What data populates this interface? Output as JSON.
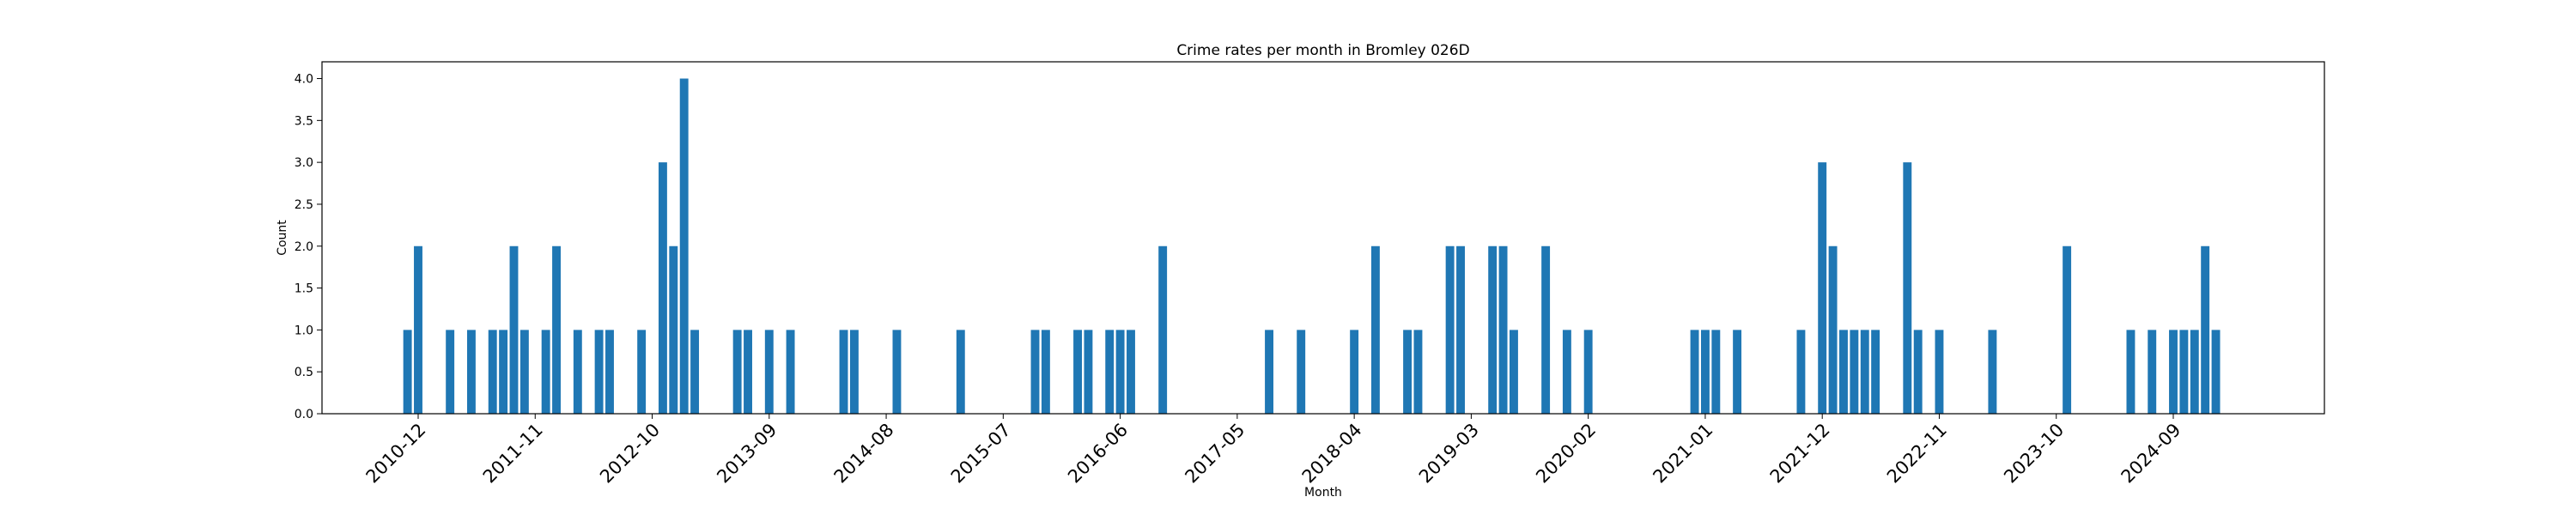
{
  "chart_data": {
    "type": "bar",
    "title": "Crime rates per month in Bromley 026D",
    "xlabel": "Month",
    "ylabel": "Count",
    "ylim": [
      0,
      4.2
    ],
    "y_ticks": [
      "0.0",
      "0.5",
      "1.0",
      "1.5",
      "2.0",
      "2.5",
      "3.0",
      "3.5",
      "4.0"
    ],
    "x_range": [
      "2010-04",
      "2025-09"
    ],
    "x_tick_labels": [
      "2010-12",
      "2011-11",
      "2012-10",
      "2013-09",
      "2014-08",
      "2015-07",
      "2016-06",
      "2017-05",
      "2018-04",
      "2019-03",
      "2020-02",
      "2021-01",
      "2021-12",
      "2022-11",
      "2023-10",
      "2024-09"
    ],
    "bar_color": "#1f77b4",
    "grid": false,
    "legend": "none",
    "bars": [
      {
        "month": "2010-11",
        "value": 1
      },
      {
        "month": "2010-12",
        "value": 2
      },
      {
        "month": "2011-03",
        "value": 1
      },
      {
        "month": "2011-05",
        "value": 1
      },
      {
        "month": "2011-07",
        "value": 1
      },
      {
        "month": "2011-08",
        "value": 1
      },
      {
        "month": "2011-09",
        "value": 2
      },
      {
        "month": "2011-10",
        "value": 1
      },
      {
        "month": "2011-12",
        "value": 1
      },
      {
        "month": "2012-01",
        "value": 2
      },
      {
        "month": "2012-03",
        "value": 1
      },
      {
        "month": "2012-05",
        "value": 1
      },
      {
        "month": "2012-06",
        "value": 1
      },
      {
        "month": "2012-09",
        "value": 1
      },
      {
        "month": "2012-11",
        "value": 3
      },
      {
        "month": "2012-12",
        "value": 2
      },
      {
        "month": "2013-01",
        "value": 4
      },
      {
        "month": "2013-02",
        "value": 1
      },
      {
        "month": "2013-06",
        "value": 1
      },
      {
        "month": "2013-07",
        "value": 1
      },
      {
        "month": "2013-09",
        "value": 1
      },
      {
        "month": "2013-11",
        "value": 1
      },
      {
        "month": "2014-04",
        "value": 1
      },
      {
        "month": "2014-05",
        "value": 1
      },
      {
        "month": "2014-09",
        "value": 1
      },
      {
        "month": "2015-03",
        "value": 1
      },
      {
        "month": "2015-10",
        "value": 1
      },
      {
        "month": "2015-11",
        "value": 1
      },
      {
        "month": "2016-02",
        "value": 1
      },
      {
        "month": "2016-03",
        "value": 1
      },
      {
        "month": "2016-05",
        "value": 1
      },
      {
        "month": "2016-06",
        "value": 1
      },
      {
        "month": "2016-07",
        "value": 1
      },
      {
        "month": "2016-10",
        "value": 2
      },
      {
        "month": "2017-08",
        "value": 1
      },
      {
        "month": "2017-11",
        "value": 1
      },
      {
        "month": "2018-04",
        "value": 1
      },
      {
        "month": "2018-06",
        "value": 2
      },
      {
        "month": "2018-09",
        "value": 1
      },
      {
        "month": "2018-10",
        "value": 1
      },
      {
        "month": "2019-01",
        "value": 2
      },
      {
        "month": "2019-02",
        "value": 2
      },
      {
        "month": "2019-05",
        "value": 2
      },
      {
        "month": "2019-06",
        "value": 2
      },
      {
        "month": "2019-07",
        "value": 1
      },
      {
        "month": "2019-10",
        "value": 2
      },
      {
        "month": "2019-12",
        "value": 1
      },
      {
        "month": "2020-02",
        "value": 1
      },
      {
        "month": "2020-12",
        "value": 1
      },
      {
        "month": "2021-01",
        "value": 1
      },
      {
        "month": "2021-02",
        "value": 1
      },
      {
        "month": "2021-04",
        "value": 1
      },
      {
        "month": "2021-10",
        "value": 1
      },
      {
        "month": "2021-12",
        "value": 3
      },
      {
        "month": "2022-01",
        "value": 2
      },
      {
        "month": "2022-02",
        "value": 1
      },
      {
        "month": "2022-03",
        "value": 1
      },
      {
        "month": "2022-04",
        "value": 1
      },
      {
        "month": "2022-05",
        "value": 1
      },
      {
        "month": "2022-08",
        "value": 3
      },
      {
        "month": "2022-09",
        "value": 1
      },
      {
        "month": "2022-11",
        "value": 1
      },
      {
        "month": "2023-04",
        "value": 1
      },
      {
        "month": "2023-11",
        "value": 2
      },
      {
        "month": "2024-05",
        "value": 1
      },
      {
        "month": "2024-07",
        "value": 1
      },
      {
        "month": "2024-09",
        "value": 1
      },
      {
        "month": "2024-10",
        "value": 1
      },
      {
        "month": "2024-11",
        "value": 1
      },
      {
        "month": "2024-12",
        "value": 2
      },
      {
        "month": "2025-01",
        "value": 1
      }
    ]
  }
}
